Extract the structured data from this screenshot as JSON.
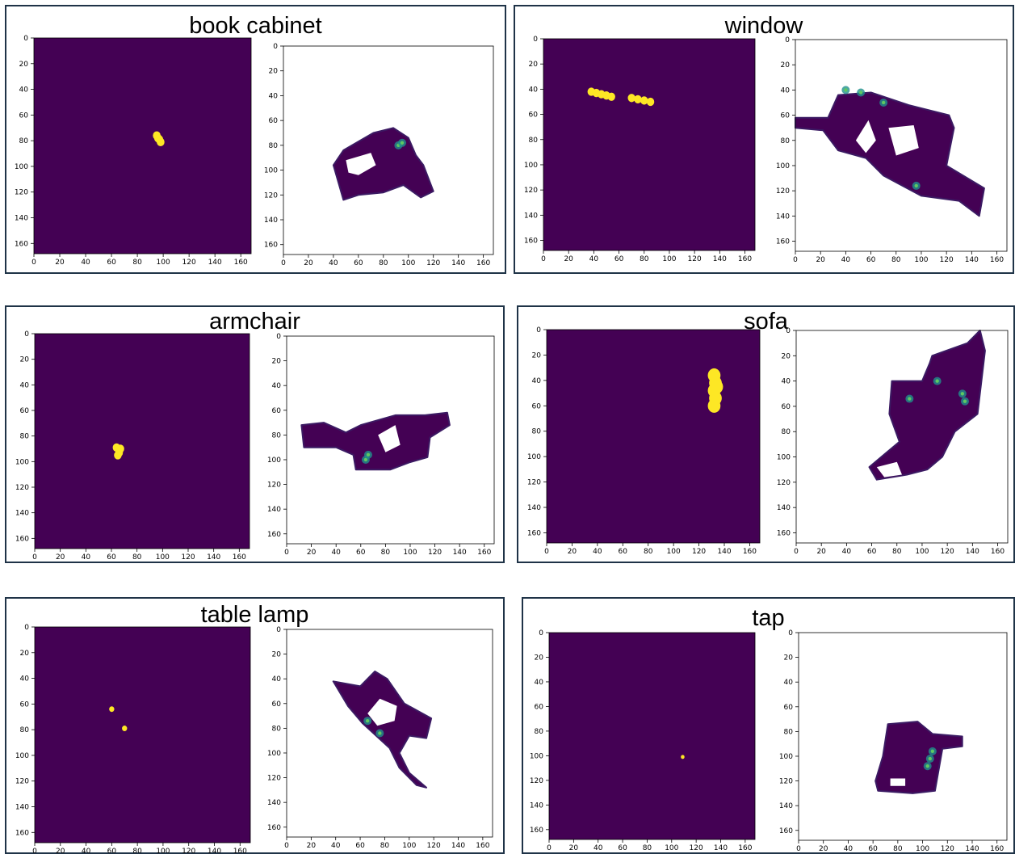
{
  "colors": {
    "background": "#440154",
    "mask": "#fde725",
    "frame": "#1f3347",
    "heat_mid": "#21918c",
    "heat_high": "#5ec962"
  },
  "chart_data": [
    {
      "type": "heatmap",
      "title": "book cabinet",
      "axis": {
        "xlim": [
          0,
          168
        ],
        "ylim": [
          168,
          0
        ],
        "xticks": [
          0,
          20,
          40,
          60,
          80,
          100,
          120,
          140,
          160
        ],
        "yticks": [
          0,
          20,
          40,
          60,
          80,
          100,
          120,
          140,
          160
        ]
      },
      "mask_points": [
        [
          95,
          76
        ],
        [
          97,
          79
        ],
        [
          98,
          81
        ],
        [
          96,
          78
        ]
      ],
      "mask_radius": 3,
      "occupancy": [
        [
          40,
          96
        ],
        [
          48,
          84
        ],
        [
          72,
          70
        ],
        [
          88,
          66
        ],
        [
          100,
          74
        ],
        [
          106,
          88
        ],
        [
          112,
          96
        ],
        [
          120,
          117
        ],
        [
          110,
          122
        ],
        [
          96,
          112
        ],
        [
          80,
          118
        ],
        [
          60,
          120
        ],
        [
          48,
          124
        ],
        [
          44,
          110
        ]
      ],
      "occupancy_holes": [
        [
          [
            50,
            92
          ],
          [
            70,
            86
          ],
          [
            74,
            96
          ],
          [
            60,
            104
          ],
          [
            52,
            102
          ]
        ]
      ],
      "hotspots": [
        [
          92,
          80
        ],
        [
          95,
          78
        ]
      ]
    },
    {
      "type": "heatmap",
      "title": "window",
      "axis": {
        "xlim": [
          0,
          168
        ],
        "ylim": [
          168,
          0
        ],
        "xticks": [
          0,
          20,
          40,
          60,
          80,
          100,
          120,
          140,
          160
        ],
        "yticks": [
          0,
          20,
          40,
          60,
          80,
          100,
          120,
          140,
          160
        ]
      },
      "mask_points": [
        [
          38,
          42
        ],
        [
          42,
          43
        ],
        [
          46,
          44
        ],
        [
          50,
          45
        ],
        [
          54,
          46
        ],
        [
          70,
          47
        ],
        [
          75,
          48
        ],
        [
          80,
          49
        ],
        [
          85,
          50
        ]
      ],
      "mask_radius": 3,
      "occupancy": [
        [
          0,
          62
        ],
        [
          26,
          62
        ],
        [
          34,
          44
        ],
        [
          60,
          42
        ],
        [
          90,
          52
        ],
        [
          122,
          60
        ],
        [
          126,
          70
        ],
        [
          120,
          100
        ],
        [
          150,
          118
        ],
        [
          146,
          140
        ],
        [
          130,
          128
        ],
        [
          100,
          124
        ],
        [
          70,
          108
        ],
        [
          56,
          94
        ],
        [
          34,
          88
        ],
        [
          22,
          72
        ],
        [
          0,
          70
        ]
      ],
      "occupancy_holes": [
        [
          [
            48,
            80
          ],
          [
            58,
            64
          ],
          [
            64,
            80
          ],
          [
            56,
            90
          ]
        ],
        [
          [
            74,
            70
          ],
          [
            94,
            68
          ],
          [
            98,
            86
          ],
          [
            80,
            92
          ]
        ]
      ],
      "hotspots": [
        [
          40,
          40
        ],
        [
          52,
          42
        ],
        [
          70,
          50
        ],
        [
          96,
          116
        ]
      ]
    },
    {
      "type": "heatmap",
      "title": "armchair",
      "axis": {
        "xlim": [
          0,
          168
        ],
        "ylim": [
          168,
          0
        ],
        "xticks": [
          0,
          20,
          40,
          60,
          80,
          100,
          120,
          140,
          160
        ],
        "yticks": [
          0,
          20,
          40,
          60,
          80,
          100,
          120,
          140,
          160
        ]
      },
      "mask_points": [
        [
          64,
          89
        ],
        [
          67,
          90
        ],
        [
          66,
          93
        ],
        [
          65,
          95
        ]
      ],
      "mask_radius": 3,
      "occupancy": [
        [
          12,
          72
        ],
        [
          30,
          70
        ],
        [
          48,
          78
        ],
        [
          60,
          72
        ],
        [
          88,
          64
        ],
        [
          112,
          64
        ],
        [
          130,
          62
        ],
        [
          132,
          72
        ],
        [
          116,
          82
        ],
        [
          114,
          98
        ],
        [
          100,
          102
        ],
        [
          84,
          108
        ],
        [
          56,
          108
        ],
        [
          54,
          96
        ],
        [
          40,
          90
        ],
        [
          14,
          90
        ]
      ],
      "occupancy_holes": [
        [
          [
            74,
            80
          ],
          [
            88,
            72
          ],
          [
            92,
            88
          ],
          [
            80,
            94
          ]
        ]
      ],
      "hotspots": [
        [
          64,
          100
        ],
        [
          66,
          96
        ]
      ]
    },
    {
      "type": "heatmap",
      "title": "sofa",
      "axis": {
        "xlim": [
          0,
          168
        ],
        "ylim": [
          168,
          0
        ],
        "xticks": [
          0,
          20,
          40,
          60,
          80,
          100,
          120,
          140,
          160
        ],
        "yticks": [
          0,
          20,
          40,
          60,
          80,
          100,
          120,
          140,
          160
        ]
      },
      "mask_points": [
        [
          132,
          36
        ],
        [
          133,
          42
        ],
        [
          132,
          48
        ],
        [
          133,
          54
        ],
        [
          132,
          60
        ],
        [
          134,
          45
        ]
      ],
      "mask_radius": 5,
      "occupancy": [
        [
          108,
          20
        ],
        [
          136,
          10
        ],
        [
          146,
          0
        ],
        [
          150,
          16
        ],
        [
          144,
          66
        ],
        [
          126,
          80
        ],
        [
          116,
          100
        ],
        [
          104,
          110
        ],
        [
          88,
          114
        ],
        [
          64,
          118
        ],
        [
          58,
          108
        ],
        [
          70,
          98
        ],
        [
          82,
          88
        ],
        [
          74,
          66
        ],
        [
          76,
          40
        ],
        [
          100,
          40
        ],
        [
          106,
          26
        ]
      ],
      "occupancy_holes": [
        [
          [
            64,
            108
          ],
          [
            80,
            104
          ],
          [
            84,
            114
          ],
          [
            70,
            116
          ]
        ]
      ],
      "hotspots": [
        [
          132,
          50
        ],
        [
          134,
          56
        ],
        [
          112,
          40
        ],
        [
          90,
          54
        ]
      ]
    },
    {
      "type": "heatmap",
      "title": "table lamp",
      "axis": {
        "xlim": [
          0,
          168
        ],
        "ylim": [
          168,
          0
        ],
        "xticks": [
          0,
          20,
          40,
          60,
          80,
          100,
          120,
          140,
          160
        ],
        "yticks": [
          0,
          20,
          40,
          60,
          80,
          100,
          120,
          140,
          160
        ]
      },
      "mask_points": [
        [
          60,
          64
        ],
        [
          70,
          79
        ]
      ],
      "mask_radius": 2,
      "occupancy": [
        [
          38,
          42
        ],
        [
          60,
          46
        ],
        [
          72,
          34
        ],
        [
          82,
          40
        ],
        [
          96,
          60
        ],
        [
          118,
          72
        ],
        [
          114,
          88
        ],
        [
          100,
          86
        ],
        [
          92,
          100
        ],
        [
          100,
          116
        ],
        [
          114,
          128
        ],
        [
          106,
          126
        ],
        [
          92,
          112
        ],
        [
          84,
          96
        ],
        [
          62,
          76
        ],
        [
          50,
          62
        ]
      ],
      "occupancy_holes": [
        [
          [
            66,
            68
          ],
          [
            76,
            56
          ],
          [
            90,
            62
          ],
          [
            88,
            74
          ],
          [
            74,
            78
          ]
        ]
      ],
      "hotspots": [
        [
          76,
          84
        ],
        [
          66,
          74
        ]
      ]
    },
    {
      "type": "heatmap",
      "title": "tap",
      "axis": {
        "xlim": [
          0,
          168
        ],
        "ylim": [
          168,
          0
        ],
        "xticks": [
          0,
          20,
          40,
          60,
          80,
          100,
          120,
          140,
          160
        ],
        "yticks": [
          0,
          20,
          40,
          60,
          80,
          100,
          120,
          140,
          160
        ]
      },
      "mask_points": [
        [
          109,
          101
        ]
      ],
      "mask_radius": 1.5,
      "occupancy": [
        [
          72,
          74
        ],
        [
          96,
          72
        ],
        [
          108,
          82
        ],
        [
          132,
          84
        ],
        [
          132,
          92
        ],
        [
          116,
          94
        ],
        [
          110,
          128
        ],
        [
          92,
          130
        ],
        [
          64,
          128
        ],
        [
          62,
          120
        ],
        [
          68,
          100
        ]
      ],
      "occupancy_holes": [
        [
          [
            74,
            118
          ],
          [
            86,
            118
          ],
          [
            86,
            124
          ],
          [
            74,
            124
          ]
        ]
      ],
      "hotspots": [
        [
          106,
          102
        ],
        [
          104,
          108
        ],
        [
          108,
          96
        ]
      ]
    }
  ]
}
